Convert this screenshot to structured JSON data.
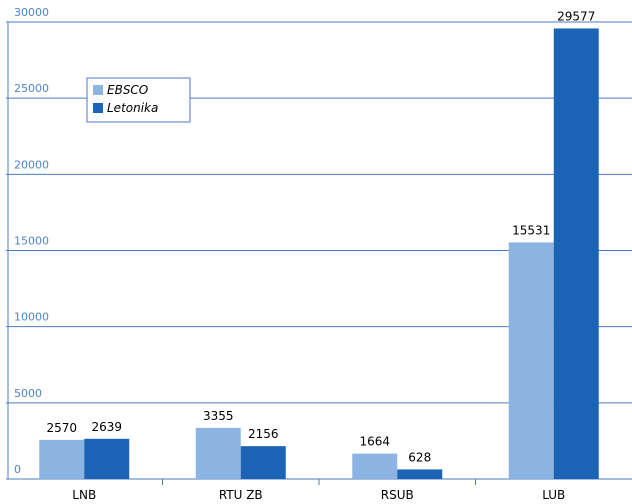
{
  "chart_data": {
    "type": "bar",
    "categories": [
      "LNB",
      "RTU ZB",
      "RSUB",
      "LUB"
    ],
    "series": [
      {
        "name": "EBSCO",
        "color": "#8db3e2",
        "values": [
          2570,
          3355,
          1664,
          15531
        ]
      },
      {
        "name": "Letonika",
        "color": "#1a63b5",
        "values": [
          2639,
          2156,
          628,
          29577
        ]
      }
    ],
    "ylim": [
      0,
      30000
    ],
    "yticks": [
      0,
      5000,
      10000,
      15000,
      20000,
      25000,
      30000
    ],
    "grid": true,
    "legend": "upper left"
  }
}
